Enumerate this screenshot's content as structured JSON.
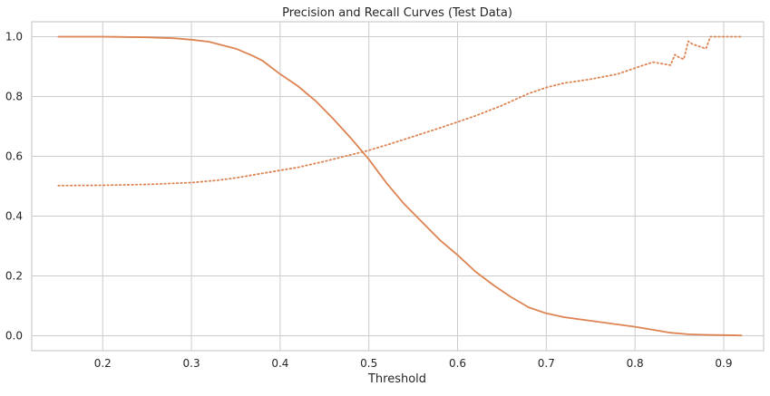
{
  "chart_data": {
    "type": "line",
    "title": "Precision and Recall Curves (Test Data)",
    "xlabel": "Threshold",
    "ylabel": "",
    "xlim": [
      0.12,
      0.945
    ],
    "ylim": [
      -0.05,
      1.05
    ],
    "xticks": [
      0.2,
      0.3,
      0.4,
      0.5,
      0.6,
      0.7,
      0.8,
      0.9
    ],
    "yticks": [
      0.0,
      0.2,
      0.4,
      0.6,
      0.8,
      1.0
    ],
    "xtick_labels": [
      "0.2",
      "0.3",
      "0.4",
      "0.5",
      "0.6",
      "0.7",
      "0.8",
      "0.9"
    ],
    "ytick_labels": [
      "0.0",
      "0.2",
      "0.4",
      "0.6",
      "0.8",
      "1.0"
    ],
    "grid": true,
    "legend": "none",
    "series": [
      {
        "style": "solid",
        "color": "#dd8452",
        "x": [
          0.15,
          0.2,
          0.25,
          0.28,
          0.3,
          0.32,
          0.35,
          0.37,
          0.38,
          0.4,
          0.42,
          0.44,
          0.46,
          0.48,
          0.5,
          0.52,
          0.54,
          0.56,
          0.58,
          0.6,
          0.62,
          0.64,
          0.66,
          0.68,
          0.7,
          0.72,
          0.75,
          0.78,
          0.8,
          0.82,
          0.84,
          0.86,
          0.88,
          0.9,
          0.92
        ],
        "y": [
          1.0,
          1.0,
          0.998,
          0.995,
          0.99,
          0.983,
          0.96,
          0.935,
          0.92,
          0.875,
          0.835,
          0.785,
          0.725,
          0.66,
          0.59,
          0.51,
          0.44,
          0.38,
          0.32,
          0.27,
          0.215,
          0.17,
          0.13,
          0.095,
          0.075,
          0.062,
          0.05,
          0.038,
          0.03,
          0.02,
          0.01,
          0.005,
          0.003,
          0.002,
          0.001
        ]
      },
      {
        "style": "dotted",
        "color": "#dd8452",
        "x": [
          0.15,
          0.2,
          0.25,
          0.3,
          0.33,
          0.35,
          0.38,
          0.4,
          0.42,
          0.45,
          0.48,
          0.5,
          0.52,
          0.55,
          0.58,
          0.6,
          0.62,
          0.65,
          0.68,
          0.7,
          0.72,
          0.75,
          0.78,
          0.8,
          0.82,
          0.83,
          0.84,
          0.845,
          0.85,
          0.855,
          0.86,
          0.865,
          0.87,
          0.88,
          0.885,
          0.89,
          0.9,
          0.92
        ],
        "y": [
          0.502,
          0.503,
          0.506,
          0.512,
          0.52,
          0.528,
          0.543,
          0.553,
          0.563,
          0.583,
          0.605,
          0.62,
          0.638,
          0.666,
          0.695,
          0.715,
          0.735,
          0.77,
          0.81,
          0.83,
          0.845,
          0.858,
          0.875,
          0.895,
          0.915,
          0.91,
          0.905,
          0.94,
          0.93,
          0.925,
          0.985,
          0.975,
          0.97,
          0.96,
          1.0,
          1.0,
          1.0,
          1.0
        ]
      }
    ]
  }
}
